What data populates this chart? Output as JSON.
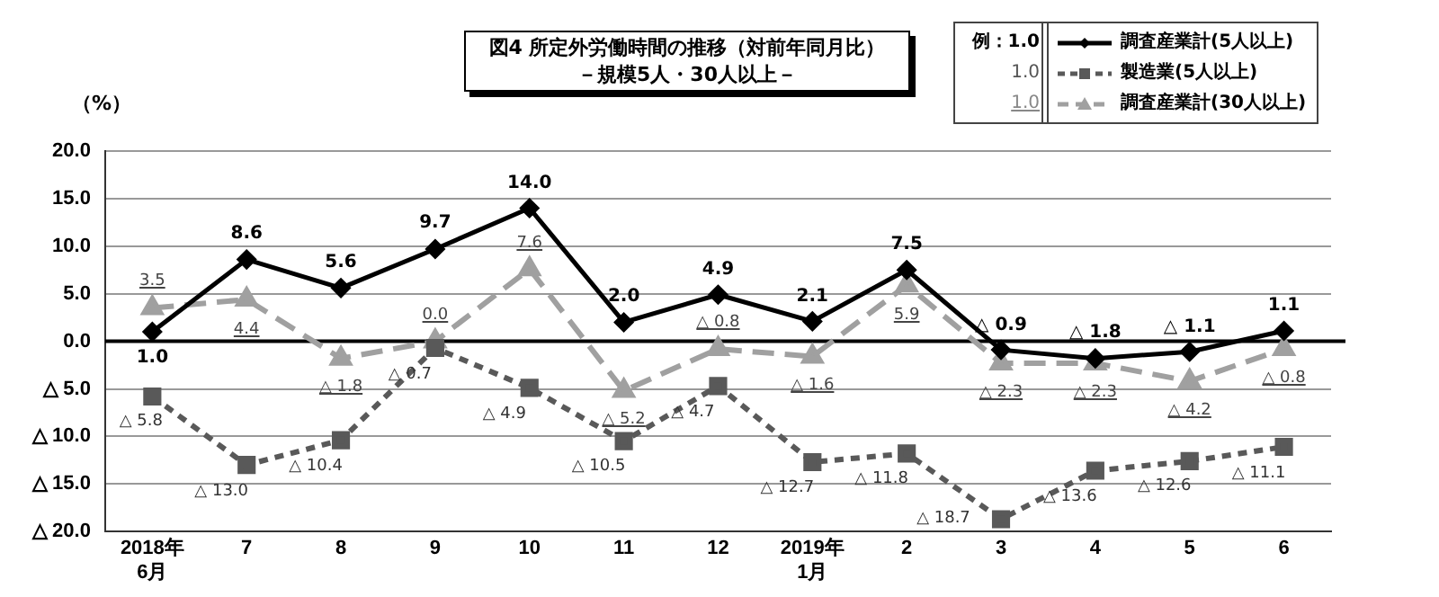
{
  "chart_data": {
    "type": "line",
    "title": "図4  所定外労働時間の推移（対前年同月比）",
    "subtitle": "－規模5人・30人以上－",
    "ylabel": "（%）",
    "categories": [
      "2018年\n6月",
      "7",
      "8",
      "9",
      "10",
      "11",
      "12",
      "2019年\n1月",
      "2",
      "3",
      "4",
      "5",
      "6"
    ],
    "series": [
      {
        "name": "調査産業計(5人以上)",
        "color": "#000000",
        "marker": "diamond",
        "line_style": "solid",
        "values": [
          1.0,
          8.6,
          5.6,
          9.7,
          14.0,
          2.0,
          4.9,
          2.1,
          7.5,
          -0.9,
          -1.8,
          -1.1,
          1.1
        ]
      },
      {
        "name": "製造業(5人以上)",
        "color": "#595959",
        "marker": "square",
        "line_style": "dashed",
        "values": [
          -5.8,
          -13.0,
          -10.4,
          -0.7,
          -4.9,
          -10.5,
          -4.7,
          -12.7,
          -11.8,
          -18.7,
          -13.6,
          -12.6,
          -11.1
        ]
      },
      {
        "name": "調査産業計(30人以上)",
        "color": "#a0a0a0",
        "marker": "triangle",
        "line_style": "dashed",
        "values": [
          3.5,
          4.4,
          -1.8,
          0.0,
          7.6,
          -5.2,
          -0.8,
          -1.6,
          5.9,
          -2.3,
          -2.3,
          -4.2,
          -0.8
        ]
      }
    ],
    "ylim": [
      -20,
      20
    ],
    "yticks": [
      {
        "value": 20,
        "label": "20.0"
      },
      {
        "value": 15,
        "label": "15.0"
      },
      {
        "value": 10,
        "label": "10.0"
      },
      {
        "value": 5,
        "label": "5.0"
      },
      {
        "value": 0,
        "label": "0.0"
      },
      {
        "value": -5,
        "label": "△ 5.0"
      },
      {
        "value": -10,
        "label": "△ 10.0"
      },
      {
        "value": -15,
        "label": "△ 15.0"
      },
      {
        "value": -20,
        "label": "△ 20.0"
      }
    ],
    "grid": "y",
    "legend": "top right",
    "ref_lines": [
      {
        "axis": "y",
        "value": 0,
        "color": "#000000"
      }
    ],
    "annotations": [
      "例：1.0",
      "1.0",
      "1.0",
      {
        "text": "1.0",
        "x": "2018年\n6月",
        "y": 1.0
      },
      {
        "text": "8.6",
        "x": "7",
        "y": 8.6
      },
      {
        "text": "5.6",
        "x": "8",
        "y": 5.6
      },
      {
        "text": "9.7",
        "x": "9",
        "y": 9.7
      },
      {
        "text": "14.0",
        "x": "10",
        "y": 14.0
      },
      {
        "text": "2.0",
        "x": "11",
        "y": 2.0
      },
      {
        "text": "4.9",
        "x": "12",
        "y": 4.9
      },
      {
        "text": "2.1",
        "x": "2019年\n1月",
        "y": 2.1
      },
      {
        "text": "7.5",
        "x": "2",
        "y": 7.5
      },
      {
        "text": "△ 0.9",
        "x": "3",
        "y": -0.9
      },
      {
        "text": "△ 1.8",
        "x": "4",
        "y": -1.8
      },
      {
        "text": "△ 1.1",
        "x": "5",
        "y": -1.1
      },
      {
        "text": "1.1",
        "x": "6",
        "y": 1.1
      },
      {
        "text": "△ 5.8",
        "x": "2018年\n6月",
        "y": -5.8
      },
      {
        "text": "△ 13.0",
        "x": "7",
        "y": -13.0
      },
      {
        "text": "△ 10.4",
        "x": "8",
        "y": -10.4
      },
      {
        "text": "△ 0.7",
        "x": "9",
        "y": -0.7
      },
      {
        "text": "△ 4.9",
        "x": "10",
        "y": -4.9
      },
      {
        "text": "△ 10.5",
        "x": "11",
        "y": -10.5
      },
      {
        "text": "△ 4.7",
        "x": "12",
        "y": -4.7
      },
      {
        "text": "△ 12.7",
        "x": "2019年\n1月",
        "y": -12.7
      },
      {
        "text": "△ 11.8",
        "x": "2",
        "y": -11.8
      },
      {
        "text": "△ 18.7",
        "x": "3",
        "y": -18.7
      },
      {
        "text": "△ 13.6",
        "x": "4",
        "y": -13.6
      },
      {
        "text": "△ 12.6",
        "x": "5",
        "y": -12.6
      },
      {
        "text": "△ 11.1",
        "x": "6",
        "y": -11.1
      },
      {
        "text": "3.5",
        "x": "2018年\n6月",
        "y": 3.5
      },
      {
        "text": "4.4",
        "x": "7",
        "y": 4.4
      },
      {
        "text": "△ 1.8",
        "x": "8",
        "y": -1.8
      },
      {
        "text": "0.0",
        "x": "9",
        "y": 0.0
      },
      {
        "text": "7.6",
        "x": "10",
        "y": 7.6
      },
      {
        "text": "△ 5.2",
        "x": "11",
        "y": -5.2
      },
      {
        "text": "△ 0.8",
        "x": "12",
        "y": -0.8
      },
      {
        "text": "△ 1.6",
        "x": "2019年\n1月",
        "y": -1.6
      },
      {
        "text": "5.9",
        "x": "2",
        "y": 5.9
      },
      {
        "text": "△ 2.3",
        "x": "3",
        "y": -2.3
      },
      {
        "text": "△ 2.3",
        "x": "4",
        "y": -2.3
      },
      {
        "text": "△ 4.2",
        "x": "5",
        "y": -4.2
      },
      {
        "text": "△ 0.8",
        "x": "6",
        "y": -0.8
      }
    ]
  }
}
